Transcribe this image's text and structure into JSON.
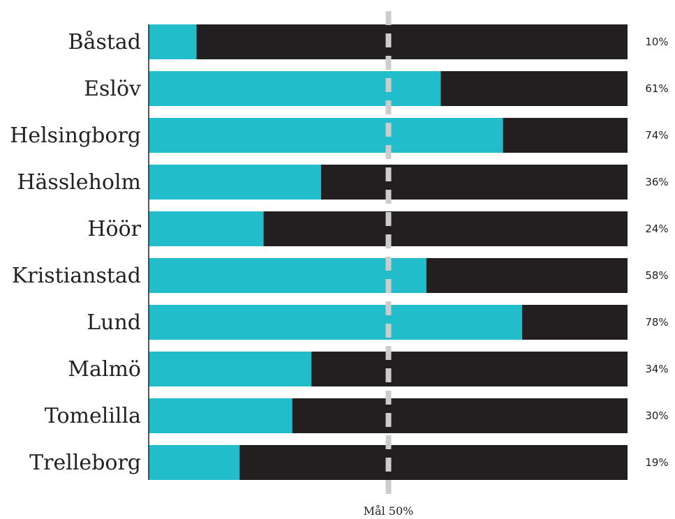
{
  "chart_data": {
    "type": "bar",
    "orientation": "horizontal",
    "stacked_to_full": true,
    "categories": [
      "Båstad",
      "Eslöv",
      "Helsingborg",
      "Hässleholm",
      "Höör",
      "Kristianstad",
      "Lund",
      "Malmö",
      "Tomelilla",
      "Trelleborg"
    ],
    "values": [
      10,
      61,
      74,
      36,
      24,
      58,
      78,
      34,
      30,
      19
    ],
    "value_labels": [
      "10%",
      "61%",
      "74%",
      "36%",
      "24%",
      "58%",
      "78%",
      "34%",
      "30%",
      "19%"
    ],
    "xlim": [
      0,
      100
    ],
    "target": {
      "value": 50,
      "label": "Mål 50%"
    },
    "legend": "none",
    "grid": false,
    "colors": {
      "value": "#22bdca",
      "remainder": "#231f20",
      "target_line": "#cccccc",
      "text": "#222222"
    }
  }
}
